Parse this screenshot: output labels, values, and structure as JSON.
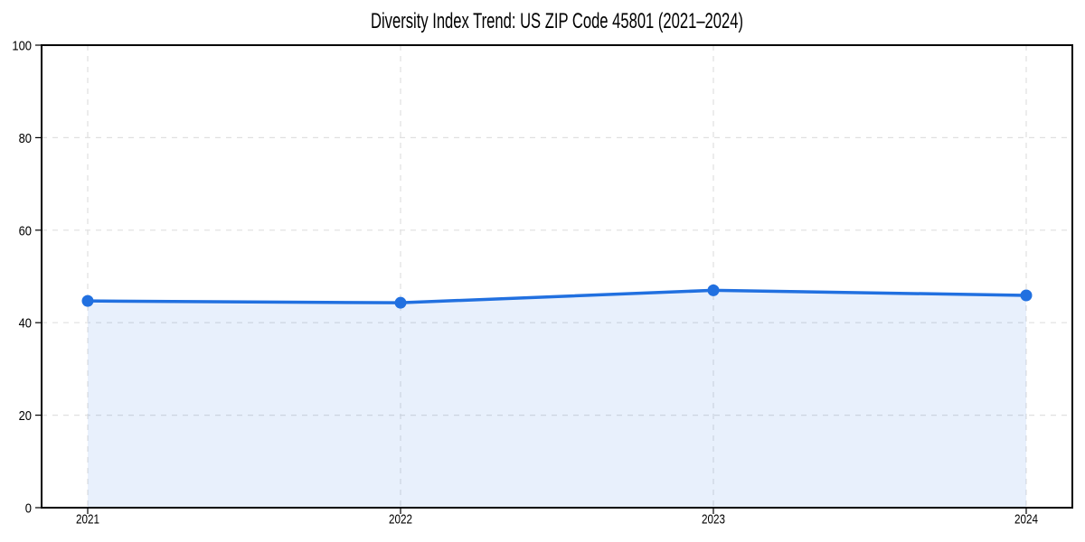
{
  "chart_data": {
    "type": "area",
    "title": "Diversity Index Trend: US ZIP Code 45801 (2021–2024)",
    "categories": [
      "2021",
      "2022",
      "2023",
      "2024"
    ],
    "series": [
      {
        "name": "Diversity Index",
        "values": [
          44.7,
          44.3,
          47.0,
          45.9
        ]
      }
    ],
    "xlabel": "",
    "ylabel": "",
    "ylim": [
      0,
      100
    ],
    "yticks": [
      0,
      20,
      40,
      60,
      80,
      100
    ],
    "grid": "dashed",
    "legend": "none",
    "marker": "circle",
    "colors": {
      "line": "#2170e0",
      "marker": "#2170e0",
      "fill": "#2170e0",
      "fill_opacity": 0.1,
      "grid": "#e0e0e0",
      "axis": "#000000",
      "text": "#000000",
      "background": "#ffffff"
    }
  }
}
